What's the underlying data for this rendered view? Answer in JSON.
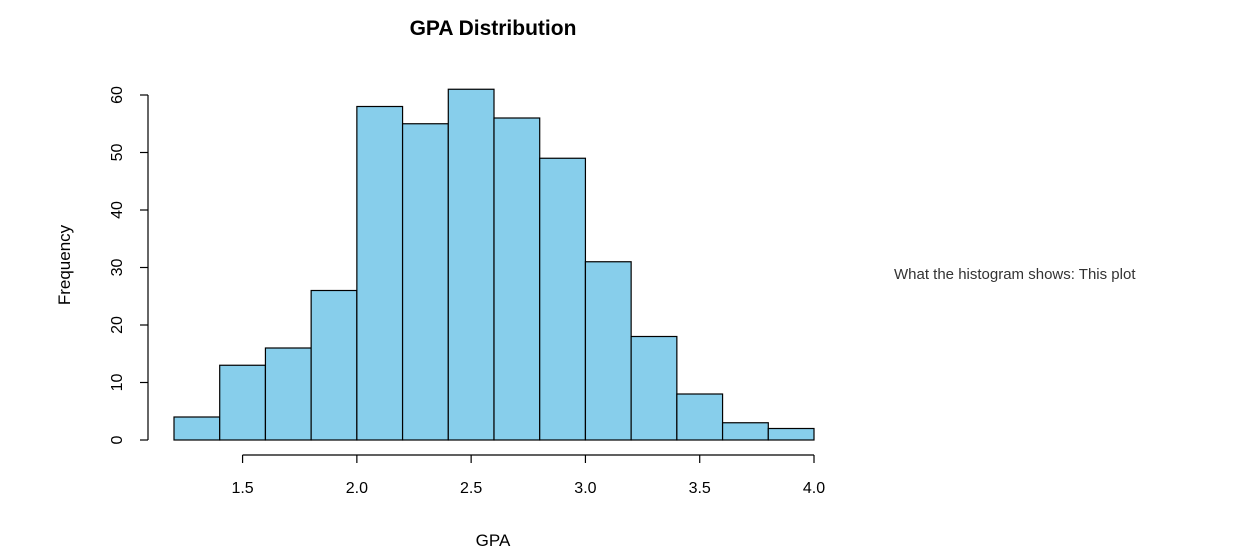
{
  "chart_data": {
    "type": "bar",
    "title": "GPA Distribution",
    "xlabel": "GPA",
    "ylabel": "Frequency",
    "bins": [
      {
        "x0": 1.2,
        "x1": 1.4,
        "count": 4
      },
      {
        "x0": 1.4,
        "x1": 1.6,
        "count": 13
      },
      {
        "x0": 1.6,
        "x1": 1.8,
        "count": 16
      },
      {
        "x0": 1.8,
        "x1": 2.0,
        "count": 26
      },
      {
        "x0": 2.0,
        "x1": 2.2,
        "count": 58
      },
      {
        "x0": 2.2,
        "x1": 2.4,
        "count": 55
      },
      {
        "x0": 2.4,
        "x1": 2.6,
        "count": 61
      },
      {
        "x0": 2.6,
        "x1": 2.8,
        "count": 56
      },
      {
        "x0": 2.8,
        "x1": 3.0,
        "count": 49
      },
      {
        "x0": 3.0,
        "x1": 3.2,
        "count": 31
      },
      {
        "x0": 3.2,
        "x1": 3.4,
        "count": 18
      },
      {
        "x0": 3.4,
        "x1": 3.6,
        "count": 8
      },
      {
        "x0": 3.6,
        "x1": 3.8,
        "count": 3
      },
      {
        "x0": 3.8,
        "x1": 4.0,
        "count": 2
      }
    ],
    "x_ticks": [
      1.5,
      2.0,
      2.5,
      3.0,
      3.5,
      4.0
    ],
    "x_tick_labels": [
      "1.5",
      "2.0",
      "2.5",
      "3.0",
      "3.5",
      "4.0"
    ],
    "y_ticks": [
      0,
      10,
      20,
      30,
      40,
      50,
      60
    ],
    "y_tick_labels": [
      "0",
      "10",
      "20",
      "30",
      "40",
      "50",
      "60"
    ],
    "xlim": [
      1.2,
      4.0
    ],
    "ylim": [
      0,
      60
    ],
    "grid": false,
    "bar_color": "#87CEEB",
    "edge_color": "#000000"
  },
  "side_text": "What the histogram shows: This plot"
}
